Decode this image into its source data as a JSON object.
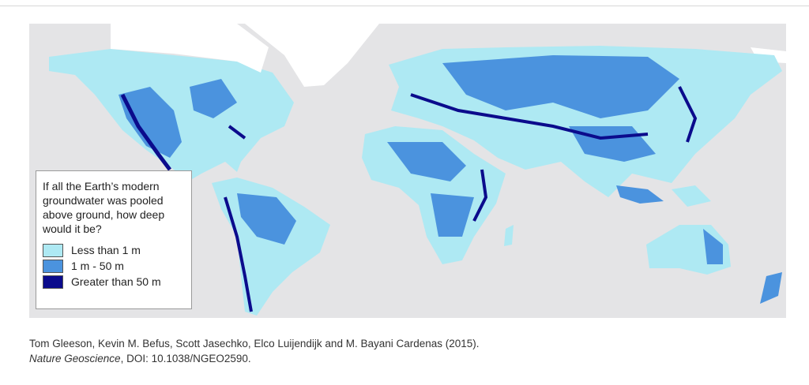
{
  "legend": {
    "title_lines": [
      "If all the Earth’s modern",
      "groundwater was pooled",
      "above ground, how deep",
      "would it be?"
    ],
    "items": [
      {
        "label": "Less than 1 m",
        "color": "#aee9f3"
      },
      {
        "label": "1 m - 50 m",
        "color": "#4b93de"
      },
      {
        "label": "Greater than 50 m",
        "color": "#0b0b8c"
      }
    ]
  },
  "citation": {
    "line1": "Tom Gleeson, Kevin M. Befus, Scott Jasechko, Elco Luijendijk and M. Bayani Cardenas (2015).",
    "journal": "Nature Geoscience",
    "doi": ", DOI: 10.1038/NGEO2590."
  }
}
